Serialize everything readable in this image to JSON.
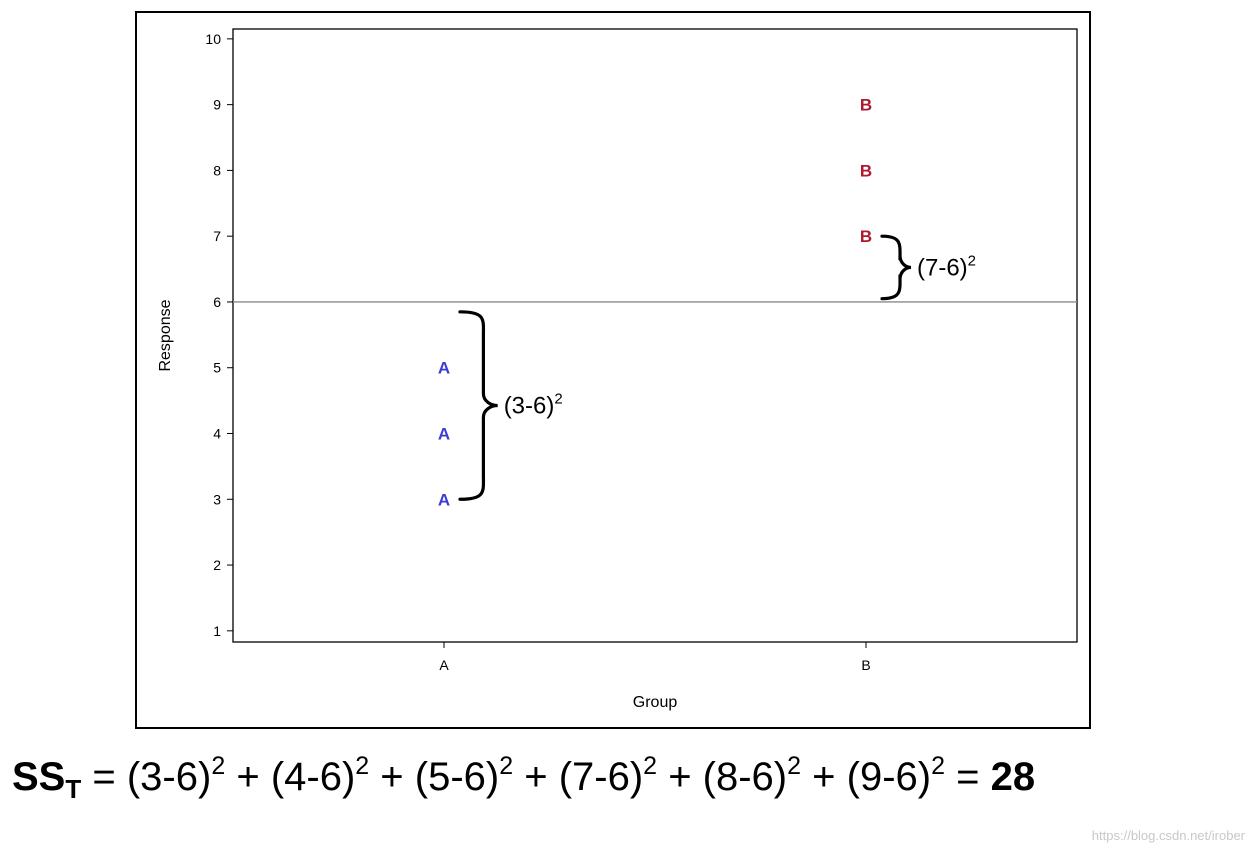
{
  "chart_data": {
    "type": "scatter",
    "xlabel": "Group",
    "ylabel": "Response",
    "categories": [
      "A",
      "B"
    ],
    "yticks": [
      1,
      2,
      3,
      4,
      5,
      6,
      7,
      8,
      9,
      10
    ],
    "ylim": [
      0.83,
      10.15
    ],
    "grid": false,
    "reference_line": 6,
    "points": [
      {
        "group": "A",
        "y": 3,
        "label": "A"
      },
      {
        "group": "A",
        "y": 4,
        "label": "A"
      },
      {
        "group": "A",
        "y": 5,
        "label": "A"
      },
      {
        "group": "B",
        "y": 7,
        "label": "B"
      },
      {
        "group": "B",
        "y": 8,
        "label": "B"
      },
      {
        "group": "B",
        "y": 9,
        "label": "B"
      }
    ],
    "colors": {
      "A": "#3b3bd6",
      "B": "#b0182f"
    },
    "annotations": [
      {
        "text": "(3-6)",
        "sup": "2",
        "group": "A",
        "y_from": 3,
        "y_to": 5.85
      },
      {
        "text": "(7-6)",
        "sup": "2",
        "group": "B",
        "y_from": 6.05,
        "y_to": 7
      }
    ]
  },
  "formula": {
    "ss": "SS",
    "ss_sub": "T",
    "terms": [
      {
        "base": "(3-6)",
        "sup": "2"
      },
      {
        "base": "(4-6)",
        "sup": "2"
      },
      {
        "base": "(5-6)",
        "sup": "2"
      },
      {
        "base": "(7-6)",
        "sup": "2"
      },
      {
        "base": "(8-6)",
        "sup": "2"
      },
      {
        "base": "(9-6)",
        "sup": "2"
      }
    ],
    "equals": "=",
    "plus": "+",
    "result": "28"
  },
  "watermark": "https://blog.csdn.net/irober"
}
